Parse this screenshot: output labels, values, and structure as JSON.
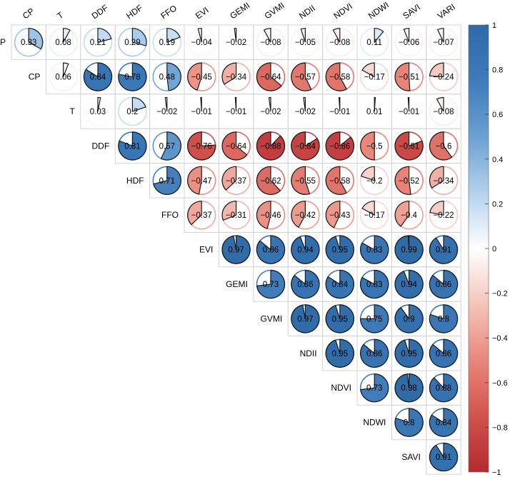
{
  "chart_data": {
    "type": "heatmap",
    "subtype": "correlation-pie-upper",
    "title": "",
    "columns": [
      "CP",
      "T",
      "DDF",
      "HDF",
      "FFO",
      "EVI",
      "GEMI",
      "GVMI",
      "NDII",
      "NDVI",
      "NDWI",
      "SAVI",
      "VARI"
    ],
    "rows": [
      "P",
      "CP",
      "T",
      "DDF",
      "HDF",
      "FFO",
      "EVI",
      "GEMI",
      "GVMI",
      "NDII",
      "NDVI",
      "NDWI",
      "SAVI"
    ],
    "values": [
      [
        0.33,
        0.08,
        0.21,
        0.29,
        0.19,
        -0.04,
        -0.02,
        -0.08,
        -0.05,
        -0.08,
        0.11,
        -0.06,
        -0.07
      ],
      [
        null,
        0.06,
        0.84,
        0.78,
        0.48,
        -0.45,
        -0.34,
        -0.64,
        -0.57,
        -0.58,
        -0.17,
        -0.51,
        -0.24
      ],
      [
        null,
        null,
        0.03,
        0.2,
        -0.02,
        -0.01,
        -0.01,
        -0.02,
        -0.02,
        -0.01,
        0.01,
        -0.01,
        -0.08
      ],
      [
        null,
        null,
        null,
        0.81,
        0.57,
        -0.76,
        -0.64,
        -0.88,
        -0.84,
        -0.86,
        -0.5,
        -0.81,
        -0.6
      ],
      [
        null,
        null,
        null,
        null,
        0.71,
        -0.47,
        -0.37,
        -0.62,
        -0.55,
        -0.58,
        -0.2,
        -0.52,
        -0.34
      ],
      [
        null,
        null,
        null,
        null,
        null,
        -0.37,
        -0.31,
        -0.46,
        -0.42,
        -0.43,
        -0.17,
        -0.4,
        -0.22
      ],
      [
        null,
        null,
        null,
        null,
        null,
        null,
        0.97,
        0.86,
        0.94,
        0.95,
        0.83,
        0.99,
        0.91
      ],
      [
        null,
        null,
        null,
        null,
        null,
        null,
        null,
        0.73,
        0.86,
        0.84,
        0.83,
        0.94,
        0.86
      ],
      [
        null,
        null,
        null,
        null,
        null,
        null,
        null,
        null,
        0.97,
        0.95,
        0.75,
        0.9,
        0.8
      ],
      [
        null,
        null,
        null,
        null,
        null,
        null,
        null,
        null,
        null,
        0.95,
        0.86,
        0.95,
        0.86
      ],
      [
        null,
        null,
        null,
        null,
        null,
        null,
        null,
        null,
        null,
        null,
        0.73,
        0.98,
        0.88
      ],
      [
        null,
        null,
        null,
        null,
        null,
        null,
        null,
        null,
        null,
        null,
        null,
        0.8,
        0.84
      ],
      [
        null,
        null,
        null,
        null,
        null,
        null,
        null,
        null,
        null,
        null,
        null,
        null,
        0.91
      ]
    ],
    "value_labels": [
      [
        "0.33",
        "0.08",
        "0.21",
        "0.29",
        "0.19",
        "−0.04",
        "−0.02",
        "−0.08",
        "−0.05",
        "−0.08",
        "0.11",
        "−0.06",
        "−0.07"
      ],
      [
        null,
        "0.06",
        "0.84",
        "0.78",
        "0.48",
        "−0.45",
        "−0.34",
        "−0.64",
        "−0.57",
        "−0.58",
        "−0.17",
        "−0.51",
        "−0.24"
      ],
      [
        null,
        null,
        "0.03",
        "0.2",
        "−0.02",
        "−0.01",
        "−0.01",
        "−0.02",
        "−0.02",
        "−0.01",
        "0.01",
        "−0.01",
        "−0.08"
      ],
      [
        null,
        null,
        null,
        "0.81",
        "0.57",
        "−0.76",
        "−0.64",
        "−0.88",
        "−0.84",
        "−0.86",
        "−0.5",
        "−0.81",
        "−0.6"
      ],
      [
        null,
        null,
        null,
        null,
        "0.71",
        "−0.47",
        "−0.37",
        "−0.62",
        "−0.55",
        "−0.58",
        "−0.2",
        "−0.52",
        "−0.34"
      ],
      [
        null,
        null,
        null,
        null,
        null,
        "−0.37",
        "−0.31",
        "−0.46",
        "−0.42",
        "−0.43",
        "−0.17",
        "−0.4",
        "−0.22"
      ],
      [
        null,
        null,
        null,
        null,
        null,
        null,
        "0.97",
        "0.86",
        "0.94",
        "0.95",
        "0.83",
        "0.99",
        "0.91"
      ],
      [
        null,
        null,
        null,
        null,
        null,
        null,
        null,
        "0.73",
        "0.86",
        "0.84",
        "0.83",
        "0.94",
        "0.86"
      ],
      [
        null,
        null,
        null,
        null,
        null,
        null,
        null,
        null,
        "0.97",
        "0.95",
        "0.75",
        "0.9",
        "0.8"
      ],
      [
        null,
        null,
        null,
        null,
        null,
        null,
        null,
        null,
        null,
        "0.95",
        "0.86",
        "0.95",
        "0.86"
      ],
      [
        null,
        null,
        null,
        null,
        null,
        null,
        null,
        null,
        null,
        null,
        "0.73",
        "0.98",
        "0.88"
      ],
      [
        null,
        null,
        null,
        null,
        null,
        null,
        null,
        null,
        null,
        null,
        null,
        "0.8",
        "0.84"
      ],
      [
        null,
        null,
        null,
        null,
        null,
        null,
        null,
        null,
        null,
        null,
        null,
        null,
        "0.91"
      ]
    ],
    "colorbar": {
      "range": [
        -1,
        1
      ],
      "ticks": [
        1,
        0.8,
        0.6,
        0.4,
        0.2,
        0,
        -0.2,
        -0.4,
        -0.6,
        -0.8,
        -1
      ],
      "tick_labels": [
        "1",
        "0.8",
        "0.6",
        "0.4",
        "0.2",
        "0",
        "−0.2",
        "−0.4",
        "−0.6",
        "−0.8",
        "−1"
      ],
      "colors": {
        "strong_negative": "#b2182b",
        "mid_negative": "#ef8a62",
        "light_negative": "#fddbc7",
        "neutral": "#ffffff",
        "light_positive": "#d1e5f0",
        "mid_positive": "#67a9cf",
        "strong_positive": "#2166ac"
      }
    },
    "grid": true,
    "legend": "right"
  }
}
